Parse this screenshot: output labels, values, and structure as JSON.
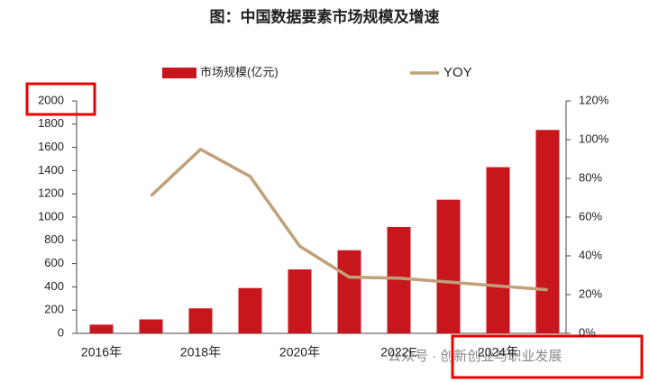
{
  "chart_data": {
    "type": "bar_line",
    "title": "图：中国数据要素市场规模及增速",
    "categories": [
      "2016年",
      null,
      "2018年",
      null,
      "2020年",
      null,
      "2022E",
      null,
      "2024年",
      null
    ],
    "series": [
      {
        "name": "市场规模(亿元)",
        "type": "bar",
        "color": "#c8161d",
        "values": [
          75,
          120,
          215,
          390,
          550,
          715,
          915,
          1150,
          1430,
          1750
        ]
      },
      {
        "name": "YOY",
        "type": "line",
        "axis": "y2",
        "color": "#bfa079",
        "values": [
          null,
          71,
          95,
          81,
          45,
          29,
          28.5,
          26.5,
          24.5,
          22.5
        ]
      }
    ],
    "ylim": [
      0,
      2000
    ],
    "yticks": [
      0,
      200,
      400,
      600,
      800,
      1000,
      1200,
      1400,
      1600,
      1800,
      2000
    ],
    "y2lim": [
      0,
      120
    ],
    "y2ticks": [
      {
        "value": 0,
        "label": "0%"
      },
      {
        "value": 20,
        "label": "20%"
      },
      {
        "value": 40,
        "label": "40%"
      },
      {
        "value": 60,
        "label": "60%"
      },
      {
        "value": 80,
        "label": "80%"
      },
      {
        "value": 100,
        "label": "100%"
      },
      {
        "value": 120,
        "label": "120%"
      }
    ],
    "legend": "top",
    "watermark": "公众号 · 创新创业与职业发展"
  }
}
